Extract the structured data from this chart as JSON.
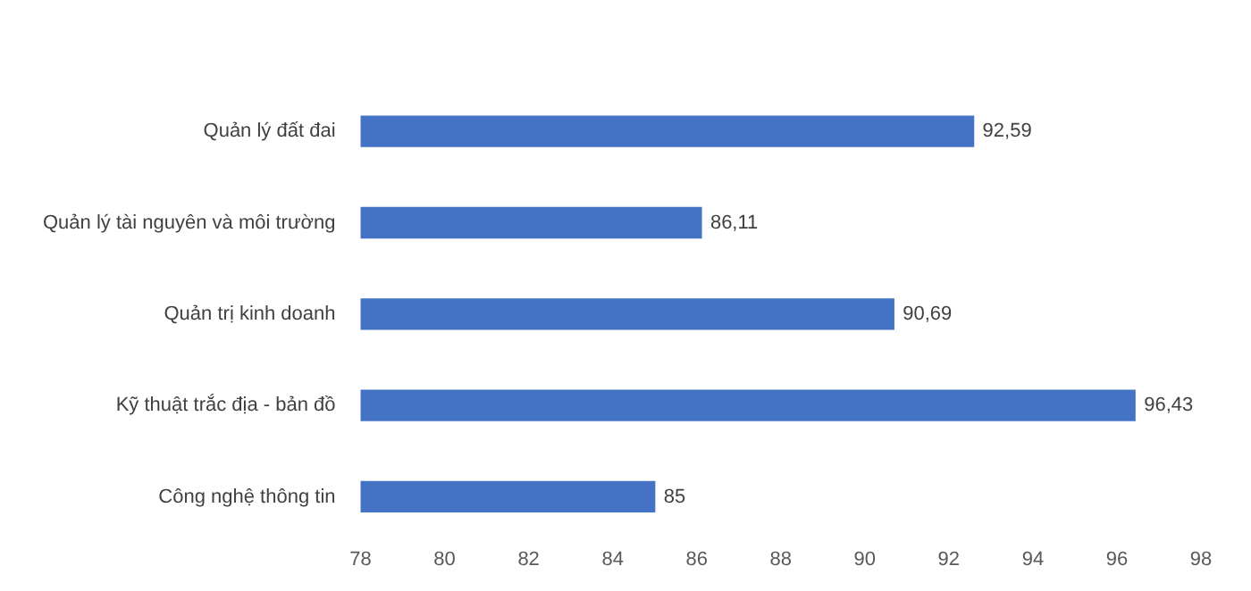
{
  "chart_data": {
    "type": "bar",
    "orientation": "horizontal",
    "categories": [
      "Quản lý đất đai",
      "Quản lý tài nguyên và môi trường",
      "Quản trị kinh doanh",
      "Kỹ thuật trắc địa - bản đồ",
      "Công nghệ thông tin"
    ],
    "values": [
      92.59,
      86.11,
      90.69,
      96.43,
      85
    ],
    "value_labels": [
      "92,59",
      "86,11",
      "90,69",
      "96,43",
      "85"
    ],
    "color": "#4472c4",
    "xlim": [
      78,
      98
    ],
    "xticks": [
      78,
      80,
      82,
      84,
      86,
      88,
      90,
      92,
      94,
      96,
      98
    ],
    "grid": false,
    "legend": false
  }
}
